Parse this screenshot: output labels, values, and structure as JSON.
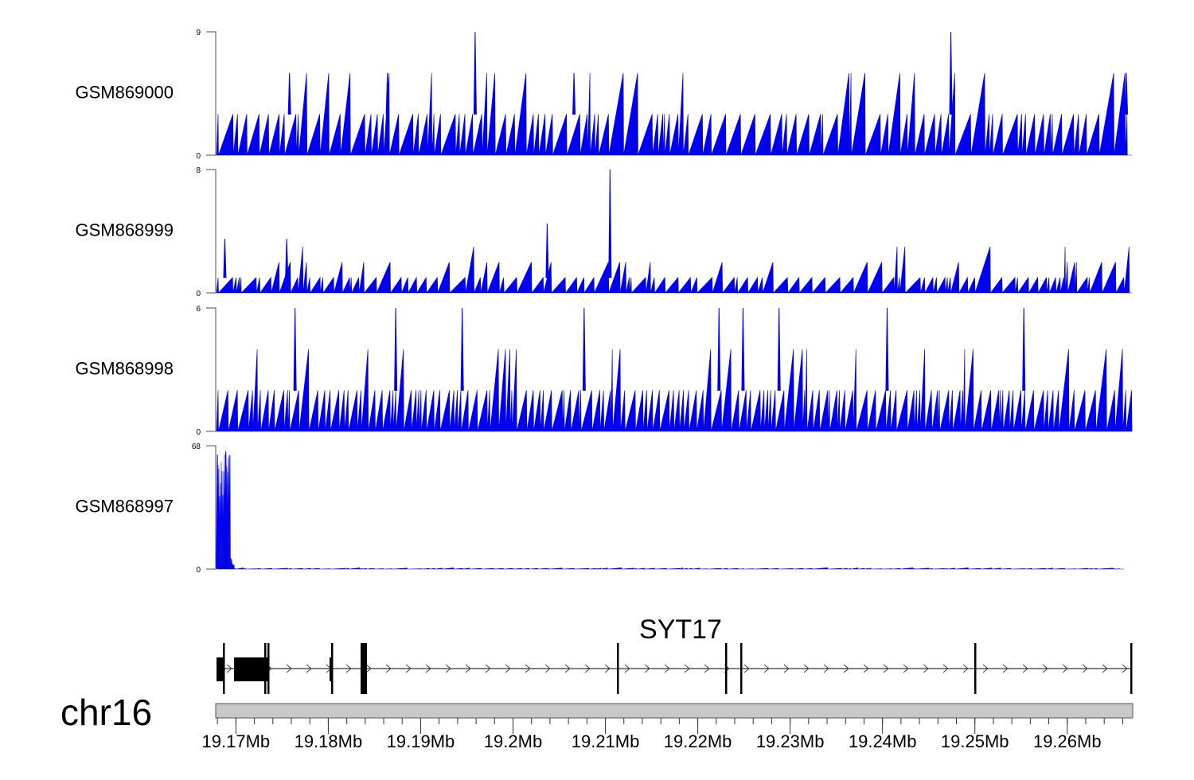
{
  "chart_data": {
    "type": "area",
    "title": "",
    "chromosome": "chr16",
    "gene": "SYT17",
    "xlim_mb": [
      19.1679,
      19.267
    ],
    "x_ticks": [
      "19.17Mb",
      "19.18Mb",
      "19.19Mb",
      "19.2Mb",
      "19.21Mb",
      "19.22Mb",
      "19.23Mb",
      "19.24Mb",
      "19.25Mb",
      "19.26Mb"
    ],
    "x_tick_values_mb": [
      19.17,
      19.18,
      19.19,
      19.2,
      19.21,
      19.22,
      19.23,
      19.24,
      19.25,
      19.26
    ],
    "tracks": [
      {
        "name": "GSM869000",
        "ylim": [
          0,
          9
        ],
        "ymin_label": "0",
        "ymax_label": "9",
        "baseline": 3,
        "peaks": [
          {
            "mb": 19.1959,
            "value": 9
          },
          {
            "mb": 19.2474,
            "value": 9
          },
          {
            "mb": 19.1758,
            "value": 6
          },
          {
            "mb": 19.1864,
            "value": 6
          },
          {
            "mb": 19.2066,
            "value": 6
          },
          {
            "mb": 19.2664,
            "value": 6
          }
        ]
      },
      {
        "name": "GSM868999",
        "ylim": [
          0,
          8
        ],
        "ymin_label": "0",
        "ymax_label": "8",
        "baseline": 1,
        "peaks": [
          {
            "mb": 19.2105,
            "value": 8
          },
          {
            "mb": 19.2037,
            "value": 4.5
          },
          {
            "mb": 19.1688,
            "value": 3.5
          },
          {
            "mb": 19.1755,
            "value": 3.5
          }
        ]
      },
      {
        "name": "GSM868998",
        "ylim": [
          0,
          6
        ],
        "ymin_label": "0",
        "ymax_label": "6",
        "baseline": 2,
        "peaks": [
          {
            "mb": 19.1764,
            "value": 6
          },
          {
            "mb": 19.1873,
            "value": 6
          },
          {
            "mb": 19.1945,
            "value": 6
          },
          {
            "mb": 19.2077,
            "value": 6
          },
          {
            "mb": 19.2223,
            "value": 6
          },
          {
            "mb": 19.2249,
            "value": 6
          },
          {
            "mb": 19.2288,
            "value": 6
          },
          {
            "mb": 19.2405,
            "value": 6
          },
          {
            "mb": 19.2553,
            "value": 6
          }
        ]
      },
      {
        "name": "GSM868997",
        "ylim": [
          0,
          68
        ],
        "ymin_label": "0",
        "ymax_label": "68",
        "baseline": 1,
        "peaks": [
          {
            "mb": 19.168,
            "value": 63
          },
          {
            "mb": 19.1689,
            "value": 65
          },
          {
            "mb": 19.169,
            "value": 33
          }
        ]
      }
    ],
    "fill_color": "#0000ee",
    "gene_model_exons_mb": [
      19.168,
      19.169,
      19.1701,
      19.1738,
      19.1748,
      19.175,
      19.1809,
      19.1842,
      19.2108,
      19.2226,
      19.2242,
      19.2494,
      19.2664
    ]
  }
}
